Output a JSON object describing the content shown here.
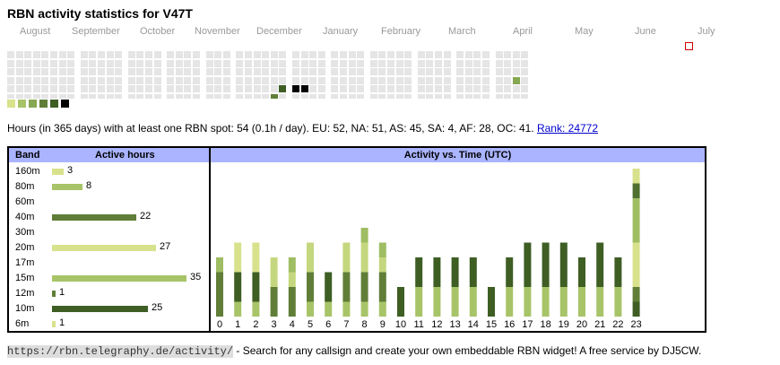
{
  "title": "RBN activity statistics for V47T",
  "months": [
    "August",
    "September",
    "October",
    "November",
    "December",
    "January",
    "February",
    "March",
    "April",
    "May",
    "June",
    "July"
  ],
  "calendar": {
    "empty_color": "#e5e5e5",
    "today_border": "#cc0000",
    "active_days": [
      {
        "week": 29,
        "day": 4,
        "level": 4
      },
      {
        "week": 30,
        "day": 4,
        "level": 5
      },
      {
        "week": 31,
        "day": 4,
        "level": 5
      },
      {
        "week": 28,
        "day": 5,
        "level": 3
      },
      {
        "week": 53,
        "day": 3,
        "level": 2
      }
    ]
  },
  "legend_colors": [
    "#d8e28c",
    "#a8c468",
    "#86a852",
    "#607e38",
    "#3e5e24",
    "#000000"
  ],
  "summary": {
    "text": "Hours (in 365 days) with at least one RBN spot: 54 (0.1h / day). EU: 52, NA: 51, AS: 45, SA: 4, AF: 28, OC: 41.",
    "rank_label": "Rank: 24772"
  },
  "band_table": {
    "header_band": "Band",
    "header_hours": "Active hours",
    "max_hours": 35,
    "rows": [
      {
        "band": "160m",
        "hours": "3",
        "color": "#d8e28c"
      },
      {
        "band": "80m",
        "hours": "8",
        "color": "#a8c468"
      },
      {
        "band": "60m",
        "hours": "",
        "color": "#b7cf7a"
      },
      {
        "band": "40m",
        "hours": "22",
        "color": "#607e38"
      },
      {
        "band": "30m",
        "hours": "",
        "color": "#a8c468"
      },
      {
        "band": "20m",
        "hours": "27",
        "color": "#d8e28c"
      },
      {
        "band": "17m",
        "hours": "",
        "color": "#a8c468"
      },
      {
        "band": "15m",
        "hours": "35",
        "color": "#a8c468"
      },
      {
        "band": "12m",
        "hours": "1",
        "color": "#607e38"
      },
      {
        "band": "10m",
        "hours": "25",
        "color": "#3e5e24"
      },
      {
        "band": "6m",
        "hours": "1",
        "color": "#d8e28c"
      }
    ]
  },
  "chart_data": {
    "type": "bar",
    "title": "Activity vs. Time (UTC)",
    "categories": [
      "0",
      "1",
      "2",
      "3",
      "4",
      "5",
      "6",
      "7",
      "8",
      "9",
      "10",
      "11",
      "12",
      "13",
      "14",
      "15",
      "16",
      "17",
      "18",
      "19",
      "20",
      "21",
      "22",
      "23"
    ],
    "series": [
      {
        "color": "#a8c468",
        "values": [
          0,
          1,
          1,
          0,
          0,
          1,
          1,
          1,
          1,
          1,
          0,
          2,
          2,
          2,
          2,
          0,
          2,
          2,
          2,
          2,
          2,
          2,
          2,
          0
        ]
      },
      {
        "color": "#3e5e24",
        "values": [
          0,
          2,
          2,
          0,
          0,
          0,
          2,
          0,
          0,
          0,
          2,
          2,
          2,
          2,
          2,
          2,
          2,
          3,
          3,
          3,
          2,
          3,
          2,
          1
        ]
      },
      {
        "color": "#607e38",
        "values": [
          3,
          0,
          0,
          2,
          2,
          2,
          0,
          2,
          2,
          2,
          0,
          0,
          0,
          0,
          0,
          0,
          0,
          0,
          0,
          0,
          0,
          0,
          0,
          1
        ]
      },
      {
        "color": "#d8e28c",
        "values": [
          0,
          2,
          2,
          0,
          0,
          0,
          0,
          0,
          0,
          0,
          0,
          0,
          0,
          0,
          0,
          0,
          0,
          0,
          0,
          0,
          0,
          0,
          0,
          3
        ]
      },
      {
        "color": "#c5d77e",
        "values": [
          0,
          0,
          0,
          2,
          1,
          2,
          0,
          2,
          2,
          1,
          0,
          0,
          0,
          0,
          0,
          0,
          0,
          0,
          0,
          0,
          0,
          0,
          0,
          0
        ]
      },
      {
        "color": "#9fbd63",
        "values": [
          1,
          0,
          0,
          0,
          1,
          0,
          0,
          0,
          1,
          1,
          0,
          0,
          0,
          0,
          0,
          0,
          0,
          0,
          0,
          0,
          0,
          0,
          0,
          3
        ]
      },
      {
        "color": "#4f7030",
        "values": [
          0,
          0,
          0,
          0,
          0,
          0,
          0,
          0,
          0,
          0,
          0,
          0,
          0,
          0,
          0,
          0,
          0,
          0,
          0,
          0,
          0,
          0,
          0,
          1
        ]
      },
      {
        "color": "#d8e28c",
        "values": [
          0,
          0,
          0,
          0,
          0,
          0,
          0,
          0,
          0,
          0,
          0,
          0,
          0,
          0,
          0,
          0,
          0,
          0,
          0,
          0,
          0,
          0,
          0,
          1
        ]
      }
    ],
    "ylim": [
      0,
      9
    ]
  },
  "footer": {
    "url": "https://rbn.telegraphy.de/activity/",
    "text": " - Search for any callsign and create your own embeddable RBN widget! A free service by DJ5CW."
  }
}
